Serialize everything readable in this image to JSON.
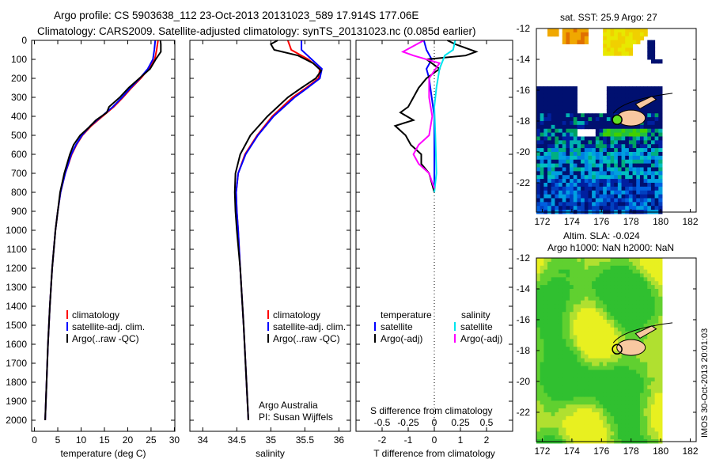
{
  "title": {
    "line1": "Argo profile: CS 5903638_112 23-Oct-2013 20131023_589 17.914S 177.06E",
    "line2": "Climatology: CARS2009. Satellite-adjusted climatology: synTS_20131023.nc (0.085d earlier)"
  },
  "colors": {
    "climatology": "#ff0000",
    "satellite": "#0000ff",
    "argo": "#000000",
    "sat_s": "#00e5ee",
    "argo_s": "#ff00ff"
  },
  "chart_data": [
    {
      "id": "temperature",
      "type": "line",
      "xlabel": "temperature (deg C)",
      "xlim": [
        -0.6,
        30.1
      ],
      "ylim": [
        0,
        2100
      ],
      "xticks": [
        0,
        5,
        10,
        15,
        20,
        25,
        30
      ],
      "yticks": [
        0,
        100,
        200,
        300,
        400,
        500,
        600,
        700,
        800,
        900,
        1000,
        1100,
        1200,
        1300,
        1400,
        1500,
        1600,
        1700,
        1800,
        1900,
        2000
      ],
      "legend": [
        "climatology",
        "satellite-adj. clim.",
        "Argo(..raw -QC)"
      ],
      "series": [
        {
          "name": "climatology",
          "color": "#ff0000",
          "depth": [
            0,
            50,
            100,
            150,
            200,
            250,
            300,
            350,
            400,
            450,
            500,
            550,
            600,
            700,
            800,
            900,
            1000,
            1200,
            1400,
            1600,
            1800,
            2000
          ],
          "values": [
            26.5,
            26.2,
            25.8,
            24.5,
            22.8,
            20.8,
            19,
            17,
            14.6,
            12.2,
            10.3,
            9,
            8,
            6.6,
            5.6,
            5,
            4.5,
            3.8,
            3.3,
            2.9,
            2.6,
            2.3
          ]
        },
        {
          "name": "satellite-adj. clim.",
          "color": "#0000ff",
          "depth": [
            0,
            50,
            100,
            150,
            200,
            250,
            300,
            350,
            400,
            450,
            500,
            550,
            600,
            700,
            800,
            900,
            1000,
            1200,
            1400,
            1600,
            1800,
            2000
          ],
          "values": [
            25.9,
            25.7,
            25.4,
            24.3,
            22.6,
            20.6,
            18.8,
            16.8,
            14.4,
            12,
            10.2,
            8.9,
            7.9,
            6.6,
            5.6,
            5,
            4.5,
            3.8,
            3.3,
            2.9,
            2.6,
            2.3
          ]
        },
        {
          "name": "Argo(..raw -QC)",
          "color": "#000000",
          "depth": [
            0,
            20,
            60,
            100,
            150,
            200,
            250,
            300,
            350,
            380,
            420,
            460,
            500,
            550,
            600,
            700,
            800,
            900,
            1000,
            1200,
            1400,
            1600,
            1800,
            2000
          ],
          "values": [
            27,
            27.1,
            27.1,
            26,
            24.8,
            22.5,
            20.2,
            18.3,
            16,
            15.5,
            13.2,
            11.6,
            9.8,
            8.4,
            7.6,
            6.4,
            5.5,
            5,
            4.5,
            3.8,
            3.3,
            2.9,
            2.6,
            2.3
          ]
        }
      ]
    },
    {
      "id": "salinity",
      "type": "line",
      "xlabel": "salinity",
      "xlim": [
        33.81,
        36.17
      ],
      "ylim": [
        0,
        2100
      ],
      "xticks": [
        34,
        34.5,
        35,
        35.5,
        36
      ],
      "legend": [
        "climatology",
        "satellite-adj. clim.",
        "Argo(..raw -QC)"
      ],
      "annotation": [
        "Argo Australia",
        "PI: Susan Wijffels"
      ],
      "series": [
        {
          "name": "climatology",
          "color": "#ff0000",
          "depth": [
            0,
            50,
            100,
            150,
            200,
            250,
            300,
            400,
            500,
            600,
            700,
            800,
            900,
            1000,
            1200,
            1500,
            2000
          ],
          "values": [
            35.25,
            35.3,
            35.55,
            35.72,
            35.7,
            35.52,
            35.32,
            35.02,
            34.8,
            34.62,
            34.52,
            34.49,
            34.5,
            34.52,
            34.55,
            34.6,
            34.67
          ]
        },
        {
          "name": "satellite-adj. clim.",
          "color": "#0000ff",
          "depth": [
            0,
            50,
            100,
            150,
            200,
            250,
            300,
            400,
            500,
            600,
            700,
            800,
            900,
            1000,
            1200,
            1500,
            2000
          ],
          "values": [
            35.45,
            35.45,
            35.6,
            35.75,
            35.72,
            35.54,
            35.35,
            35.04,
            34.81,
            34.63,
            34.52,
            34.49,
            34.5,
            34.52,
            34.55,
            34.6,
            34.67
          ]
        },
        {
          "name": "Argo(..raw -QC)",
          "color": "#000000",
          "depth": [
            0,
            20,
            50,
            80,
            120,
            160,
            200,
            250,
            300,
            350,
            400,
            500,
            600,
            700,
            800,
            900,
            1000,
            1200,
            1500,
            2000
          ],
          "values": [
            35.1,
            35.0,
            35.05,
            35.4,
            35.62,
            35.74,
            35.66,
            35.45,
            35.25,
            35.1,
            34.95,
            34.7,
            34.55,
            34.48,
            34.47,
            34.48,
            34.5,
            34.55,
            34.6,
            34.67
          ]
        }
      ]
    },
    {
      "id": "difference",
      "type": "line",
      "xlabel": "T difference from climatology",
      "xlabel_top": "S difference from climatology",
      "xlim": [
        -3,
        3
      ],
      "ylim": [
        0,
        2100
      ],
      "xticks": [
        -2,
        -1,
        0,
        1,
        2
      ],
      "xticks_top": [
        "-0.5",
        "-0.25",
        "0",
        "0.25",
        "0.5"
      ],
      "legend_t": {
        "title": "temperature",
        "items": [
          "satellite",
          "Argo(-adj)"
        ]
      },
      "legend_s": {
        "title": "salinity",
        "items": [
          "satellite",
          "Argo(-adj)"
        ]
      },
      "series": [
        {
          "name": "T satellite",
          "color": "#0000ff",
          "scale": 1,
          "depth": [
            0,
            50,
            100,
            150,
            200,
            300,
            400,
            600,
            800
          ],
          "values": [
            -0.4,
            -0.3,
            -0.1,
            -0.3,
            -0.2,
            -0.1,
            0,
            0,
            0
          ]
        },
        {
          "name": "T Argo(-adj)",
          "color": "#000000",
          "scale": 1,
          "depth": [
            0,
            20,
            60,
            80,
            100,
            150,
            200,
            250,
            300,
            350,
            380,
            420,
            450,
            500,
            550,
            600,
            650,
            700,
            750,
            800
          ],
          "values": [
            0.5,
            0.8,
            1.6,
            1.2,
            -0.3,
            0.2,
            -0.3,
            -0.6,
            -0.8,
            -1.0,
            -1.3,
            -0.8,
            -1.5,
            -1.1,
            -0.9,
            -0.5,
            -0.5,
            -0.2,
            -0.1,
            0
          ]
        },
        {
          "name": "S satellite",
          "color": "#00e5ee",
          "scale": 4,
          "depth": [
            0,
            50,
            80,
            150,
            250,
            350,
            500,
            700,
            800
          ],
          "values": [
            0.2,
            0.18,
            0.1,
            0.05,
            0.02,
            0,
            0.01,
            0.02,
            0
          ]
        },
        {
          "name": "S Argo(-adj)",
          "color": "#ff00ff",
          "scale": 4,
          "depth": [
            0,
            60,
            80,
            120,
            200,
            300,
            400,
            500,
            550,
            600,
            650,
            700,
            780
          ],
          "values": [
            -0.1,
            -0.3,
            -0.2,
            0.05,
            -0.05,
            -0.05,
            -0.02,
            -0.05,
            -0.15,
            -0.2,
            -0.15,
            -0.05,
            0
          ]
        }
      ]
    },
    {
      "id": "sst-map",
      "type": "heatmap",
      "title": "sat. SST: 25.9 Argo: 27",
      "xlim": [
        171.6,
        182.4
      ],
      "ylim": [
        -23.9,
        -12
      ],
      "xticks": [
        172,
        174,
        176,
        178,
        180,
        182
      ],
      "yticks": [
        -12,
        -14,
        -16,
        -18,
        -20,
        -22
      ]
    },
    {
      "id": "sla-map",
      "type": "heatmap",
      "title_line1": "Altim. SLA: -0.024",
      "title_line2": "Argo h1000: NaN h2000: NaN",
      "xlim": [
        171.6,
        182.4
      ],
      "ylim": [
        -23.9,
        -12
      ],
      "xticks": [
        172,
        174,
        176,
        178,
        180,
        182
      ],
      "yticks": [
        -12,
        -14,
        -16,
        -18,
        -20,
        -22
      ]
    }
  ],
  "footer_stamp": "IMOS 30-Oct-2013 20:01:03"
}
